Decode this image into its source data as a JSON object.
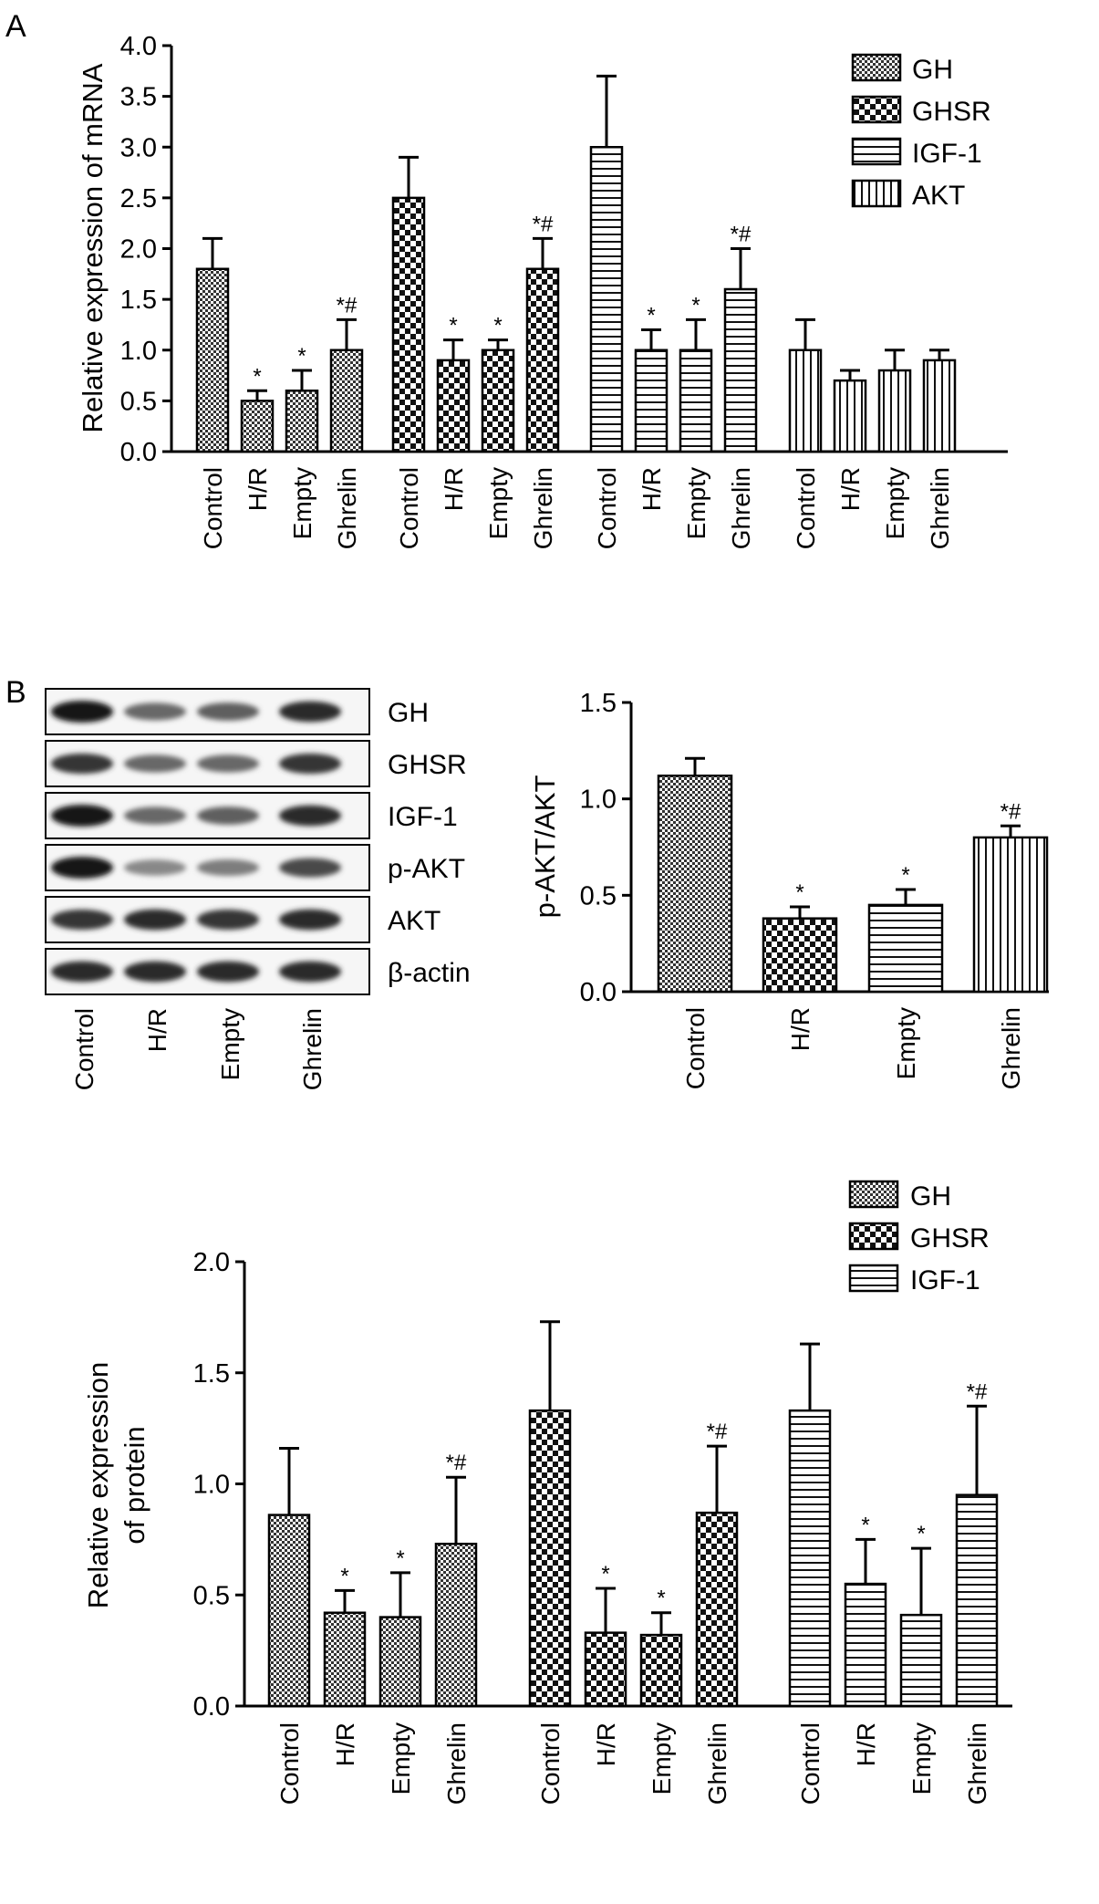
{
  "panels": {
    "a": "A",
    "b": "B"
  },
  "patterns": {
    "GH": "dots",
    "GHSR": "checker",
    "IGF-1": "hlines",
    "AKT": "vlines"
  },
  "chart_data": [
    {
      "id": "mrna",
      "type": "bar",
      "ylabel": "Relative expression of mRNA",
      "ylim": [
        0,
        4.0
      ],
      "yticks": [
        0,
        0.5,
        1.0,
        1.5,
        2.0,
        2.5,
        3.0,
        3.5,
        4.0
      ],
      "ytick_labels": [
        "0.0",
        "0.5",
        "1.0",
        "1.5",
        "2.0",
        "2.5",
        "3.0",
        "3.5",
        "4.0"
      ],
      "categories": [
        "Control",
        "H/R",
        "Empty",
        "Ghrelin"
      ],
      "legend": [
        "GH",
        "GHSR",
        "IGF-1",
        "AKT"
      ],
      "legend_position": "top-right",
      "series": [
        {
          "name": "GH",
          "values": [
            1.8,
            0.5,
            0.6,
            1.0
          ],
          "errors": [
            0.3,
            0.1,
            0.2,
            0.3
          ],
          "marks": [
            "",
            "*",
            "*",
            "*#"
          ]
        },
        {
          "name": "GHSR",
          "values": [
            2.5,
            0.9,
            1.0,
            1.8
          ],
          "errors": [
            0.4,
            0.2,
            0.1,
            0.3
          ],
          "marks": [
            "",
            "*",
            "*",
            "*#"
          ]
        },
        {
          "name": "IGF-1",
          "values": [
            3.0,
            1.0,
            1.0,
            1.6
          ],
          "errors": [
            0.7,
            0.2,
            0.3,
            0.4
          ],
          "marks": [
            "",
            "*",
            "*",
            "*#"
          ]
        },
        {
          "name": "AKT",
          "values": [
            1.0,
            0.7,
            0.8,
            0.9
          ],
          "errors": [
            0.3,
            0.1,
            0.2,
            0.1
          ],
          "marks": [
            "",
            "",
            "",
            ""
          ]
        }
      ]
    },
    {
      "id": "pakt",
      "type": "bar",
      "ylabel": "p-AKT/AKT",
      "ylim": [
        0,
        1.5
      ],
      "yticks": [
        0,
        0.5,
        1.0,
        1.5
      ],
      "ytick_labels": [
        "0.0",
        "0.5",
        "1.0",
        "1.5"
      ],
      "categories": [
        "Control",
        "H/R",
        "Empty",
        "Ghrelin"
      ],
      "values": [
        1.12,
        0.38,
        0.45,
        0.8
      ],
      "errors": [
        0.09,
        0.06,
        0.08,
        0.06
      ],
      "marks": [
        "",
        "*",
        "*",
        "*#"
      ],
      "bar_patterns": [
        "dots",
        "checker",
        "hlines",
        "vlines"
      ]
    },
    {
      "id": "protein",
      "type": "bar",
      "ylabel": [
        "Relative expression",
        "of protein"
      ],
      "ylim": [
        0,
        2.0
      ],
      "yticks": [
        0,
        0.5,
        1.0,
        1.5,
        2.0
      ],
      "ytick_labels": [
        "0.0",
        "0.5",
        "1.0",
        "1.5",
        "2.0"
      ],
      "categories": [
        "Control",
        "H/R",
        "Empty",
        "Ghrelin"
      ],
      "legend": [
        "GH",
        "GHSR",
        "IGF-1"
      ],
      "legend_position": "top-right",
      "series": [
        {
          "name": "GH",
          "values": [
            0.86,
            0.42,
            0.4,
            0.73
          ],
          "errors": [
            0.3,
            0.1,
            0.2,
            0.3
          ],
          "marks": [
            "",
            "*",
            "*",
            "*#"
          ]
        },
        {
          "name": "GHSR",
          "values": [
            1.33,
            0.33,
            0.32,
            0.87
          ],
          "errors": [
            0.4,
            0.2,
            0.1,
            0.3
          ],
          "marks": [
            "",
            "*",
            "*",
            "*#"
          ]
        },
        {
          "name": "IGF-1",
          "values": [
            1.33,
            0.55,
            0.41,
            0.95
          ],
          "errors": [
            0.3,
            0.2,
            0.3,
            0.4
          ],
          "marks": [
            "",
            "*",
            "*",
            "*#"
          ]
        }
      ]
    }
  ],
  "blot": {
    "bands": [
      "GH",
      "GHSR",
      "IGF-1",
      "p-AKT",
      "AKT",
      "β-actin"
    ],
    "lanes": [
      "Control",
      "H/R",
      "Empty",
      "Ghrelin"
    ],
    "intensity": [
      [
        1.0,
        0.6,
        0.65,
        0.9
      ],
      [
        0.85,
        0.6,
        0.6,
        0.85
      ],
      [
        1.0,
        0.6,
        0.65,
        0.9
      ],
      [
        1.0,
        0.45,
        0.5,
        0.75
      ],
      [
        0.85,
        0.9,
        0.85,
        0.9
      ],
      [
        0.9,
        0.9,
        0.9,
        0.9
      ]
    ]
  }
}
